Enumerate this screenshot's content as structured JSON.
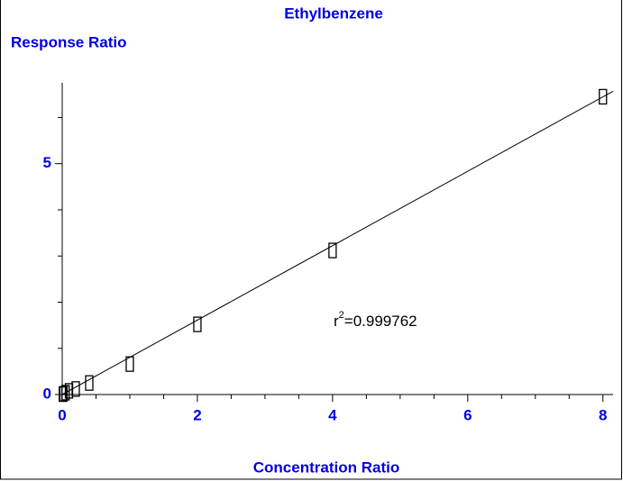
{
  "chart_data": {
    "type": "scatter",
    "title": "Ethylbenzene",
    "y_label": "Response Ratio",
    "x_label": "Concentration Ratio",
    "annotation": {
      "base": "r",
      "superscript": "2",
      "text": "=0.999762"
    },
    "x": [
      0.01,
      0.02,
      0.05,
      0.1,
      0.2,
      0.4,
      1,
      2,
      4,
      8
    ],
    "values": [
      0.008,
      0.016,
      0.04,
      0.08,
      0.12,
      0.25,
      0.66,
      1.52,
      3.12,
      6.45
    ],
    "fit": {
      "slope": 0.806,
      "intercept": 0
    },
    "xlim": [
      0,
      8.15
    ],
    "ylim": [
      0,
      6.75
    ],
    "xticks": [
      0,
      2,
      4,
      6,
      8
    ],
    "yticks": [
      0,
      5
    ],
    "xminorticks": [
      0.5,
      1,
      1.5,
      2.5,
      3,
      3.5,
      4.5,
      5,
      5.5,
      6.5,
      7,
      7.5
    ],
    "yminorticks": [
      1,
      2,
      3,
      4,
      6
    ],
    "color": "#000000"
  }
}
